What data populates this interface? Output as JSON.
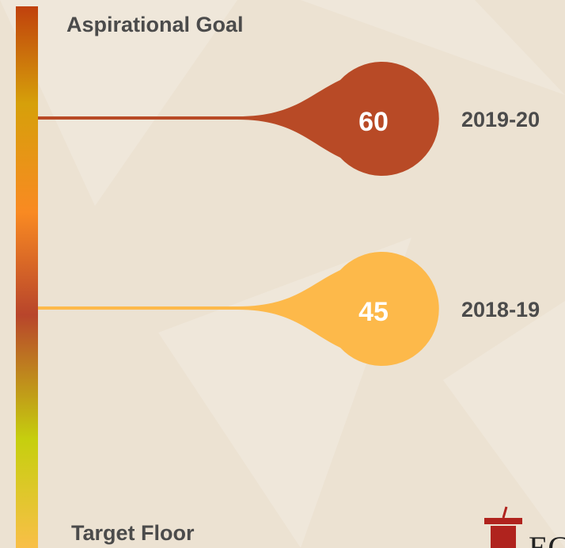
{
  "labels": {
    "top": "Aspirational Goal",
    "bottom": "Target Floor"
  },
  "markers": [
    {
      "period": "2019-20",
      "value": 60,
      "color": "#b84a26"
    },
    {
      "period": "2018-19",
      "value": 45,
      "color": "#fdb94a"
    }
  ],
  "logo": "EC"
}
